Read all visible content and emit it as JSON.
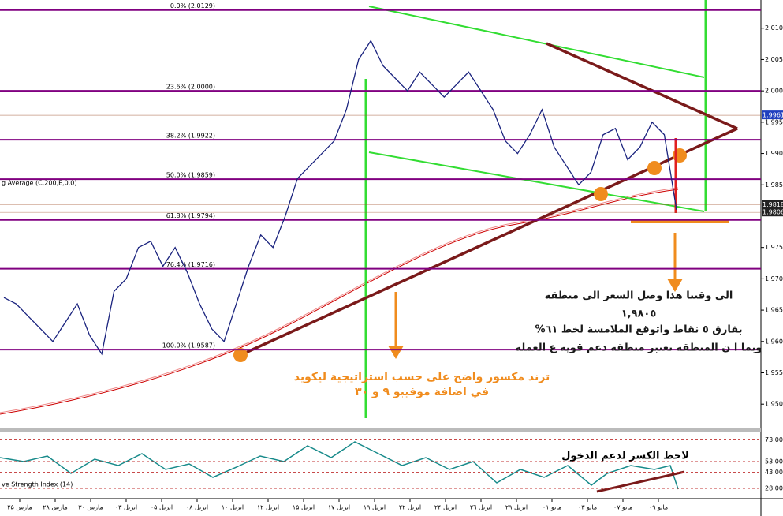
{
  "chart_data": {
    "type": "line",
    "closes": [
      1.967,
      1.966,
      1.964,
      1.962,
      1.96,
      1.963,
      1.966,
      1.961,
      1.958,
      1.968,
      1.97,
      1.975,
      1.976,
      1.972,
      1.975,
      1.971,
      1.966,
      1.962,
      1.96,
      1.966,
      1.972,
      1.977,
      1.975,
      1.98,
      1.986,
      1.988,
      1.99,
      1.992,
      1.997,
      2.005,
      2.008,
      2.004,
      2.002,
      2.0,
      2.003,
      2.001,
      1.999,
      2.001,
      2.003,
      2.0,
      1.997,
      1.992,
      1.99,
      1.993,
      1.997,
      1.991,
      1.988,
      1.985,
      1.987,
      1.993,
      1.994,
      1.989,
      1.991,
      1.995,
      1.993,
      1.981
    ],
    "ylim": [
      1.9465,
      2.0145
    ],
    "yticks": [
      {
        "value": 2.01,
        "label": "2.0100"
      },
      {
        "value": 2.005,
        "label": "2.0050"
      },
      {
        "value": 2.0,
        "label": "2.0000"
      },
      {
        "value": 1.995,
        "label": "1.9950"
      },
      {
        "value": 1.99,
        "label": "1.9900"
      },
      {
        "value": 1.985,
        "label": "1.9850"
      },
      {
        "value": 1.975,
        "label": "1.9750"
      },
      {
        "value": 1.97,
        "label": "1.9700"
      },
      {
        "value": 1.965,
        "label": "1.9650"
      },
      {
        "value": 1.96,
        "label": "1.9600"
      },
      {
        "value": 1.955,
        "label": "1.9550"
      },
      {
        "value": 1.95,
        "label": "1.9500"
      }
    ],
    "price_marks": [
      {
        "value": 1.9961,
        "label": "1.9961",
        "color": "#1f3fbf"
      },
      {
        "value": 1.9818,
        "label": "1.9818",
        "color": "#222222"
      },
      {
        "value": 1.9806,
        "label": "1.9806",
        "color": "#222222"
      }
    ],
    "fib_levels": [
      {
        "value": 2.0129,
        "label": "0.0% (2.0129)"
      },
      {
        "value": 2.0,
        "label": "23.6% (2.0000)"
      },
      {
        "value": 1.9922,
        "label": "38.2% (1.9922)"
      },
      {
        "value": 1.9859,
        "label": "50.0% (1.9859)"
      },
      {
        "value": 1.9794,
        "label": "61.8% (1.9794)"
      },
      {
        "value": 1.9716,
        "label": "76.4% (1.9716)"
      },
      {
        "value": 1.9587,
        "label": "100.0% (1.9587)"
      }
    ],
    "ma_label": "g Average (C,200,E,0,0)",
    "rsi_label": "ve Strength Index (14)",
    "rsi_ylim": [
      20,
      80
    ],
    "rsi_ticks": [
      {
        "value": 73,
        "label": "73.00"
      },
      {
        "value": 53,
        "label": "53.00"
      },
      {
        "value": 43,
        "label": "43.00"
      },
      {
        "value": 28,
        "label": "28.00"
      }
    ],
    "dates": [
      "مارس ۲۵",
      "مارس ۲۸",
      "مارس ۳۰",
      "ابريل ۰۳",
      "ابريل ۰۵",
      "ابريل ۰۸",
      "ابريل ۱۰",
      "ابريل ۱۲",
      "ابريل ۱۵",
      "ابريل ۱۷",
      "ابريل ۱۹",
      "ابريل ۲۲",
      "ابريل ۲۴",
      "ابريل ۲٦",
      "ابريل ۲۹",
      "مايو ۰۱",
      "مايو ۰۳",
      "مايو ۰۷",
      "مايو ۰۹"
    ],
    "annotations": {
      "trend": [
        "ترند مكسور واضح على حسب استراتيجية ليكويد",
        "في اضافة موفيبو ٩ و ٣٠"
      ],
      "note": [
        "الى وقتنا هذا وصل السعر الى منطقة",
        "١,٩٨٠٥",
        "بفارق ٥ نقاط واتوقع الملامسة لخط ٦١%",
        "وبما ا ن المنطقة تعتبر منطقة دعم قوية ع العملة"
      ],
      "rsi": "لاحظ الكسر لدعم الدخول"
    }
  }
}
